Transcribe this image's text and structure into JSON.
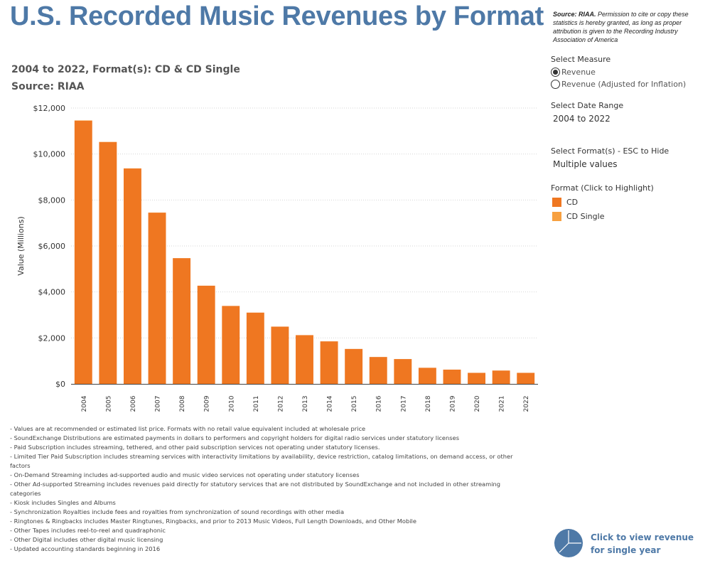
{
  "header": {
    "title": "U.S. Recorded Music Revenues by Format",
    "source_bold": "Source: RIAA.",
    "source_note": " Permission to cite or copy these statistics is hereby granted, as long as proper attribution is given to the Recording Industry Association of America",
    "subtitle_line1": "2004 to 2022, Format(s): CD & CD Single",
    "subtitle_line2": "Source: RIAA"
  },
  "controls": {
    "measure_label": "Select Measure",
    "measure_options": [
      "Revenue",
      "Revenue (Adjusted for Inflation)"
    ],
    "measure_selected": "Revenue",
    "date_range_label": "Select Date Range",
    "date_range_value": "2004 to 2022",
    "format_label": "Select Format(s) - ESC to Hide",
    "format_value": "Multiple values",
    "legend_title": "Format (Click to Highlight)",
    "legend_items": [
      {
        "label": "CD",
        "color": "#ef7721"
      },
      {
        "label": "CD Single",
        "color": "#f7a040"
      }
    ]
  },
  "chart_data": {
    "type": "bar",
    "ylabel": "Value (Millions)",
    "ylim": [
      0,
      12000
    ],
    "yticks": [
      0,
      2000,
      4000,
      6000,
      8000,
      10000,
      12000
    ],
    "ytick_labels": [
      "$0",
      "$2,000",
      "$4,000",
      "$6,000",
      "$8,000",
      "$10,000",
      "$12,000"
    ],
    "grid": "horizontal dotted",
    "categories": [
      "2004",
      "2005",
      "2006",
      "2007",
      "2008",
      "2009",
      "2010",
      "2011",
      "2012",
      "2013",
      "2014",
      "2015",
      "2016",
      "2017",
      "2018",
      "2019",
      "2020",
      "2021",
      "2022"
    ],
    "series": [
      {
        "name": "CD",
        "color": "#ef7721",
        "values": [
          11450,
          10520,
          9370,
          7450,
          5470,
          4270,
          3390,
          3100,
          2490,
          2120,
          1850,
          1520,
          1170,
          1080,
          700,
          620,
          480,
          580,
          480
        ]
      },
      {
        "name": "CD Single",
        "color": "#f7a040",
        "values": [
          15,
          10,
          7,
          5,
          3,
          3,
          2,
          2,
          1,
          1,
          1,
          1,
          1,
          1,
          1,
          1,
          1,
          1,
          1
        ]
      }
    ]
  },
  "notes": [
    "- Values are at recommended or estimated list price. Formats with no retail value equivalent included at wholesale price",
    "- SoundExchange Distributions are estimated payments in dollars to performers and copyright holders for digital radio services under statutory licenses",
    "- Paid Subscription includes streaming, tethered, and other paid subscription services not operating under statutory licenses.",
    "- Limited Tier Paid Subscription includes streaming services with interactivity limitations by availability, device restriction, catalog limitations, on demand access, or other factors",
    "- On-Demand Streaming includes ad-supported audio and music video services not operating under statutory licenses",
    "- Other Ad-supported Streaming includes revenues paid directly for statutory services that are not distributed by SoundExchange and not included in other streaming categories",
    "- Kiosk includes Singles and Albums",
    "- Synchronization Royalties include fees and royalties from synchronization of sound recordings with other media",
    "- Ringtones & Ringbacks includes Master Ringtunes, Ringbacks, and prior to 2013 Music Videos, Full Length Downloads, and Other Mobile",
    "- Other Tapes includes reel-to-reel and quadraphonic",
    "- Other Digital includes other digital music licensing",
    "- Updated accounting standards beginning in 2016"
  ],
  "single_year_link": "Click to view revenue for single year",
  "icons": {
    "pie": "pie-chart-icon"
  }
}
